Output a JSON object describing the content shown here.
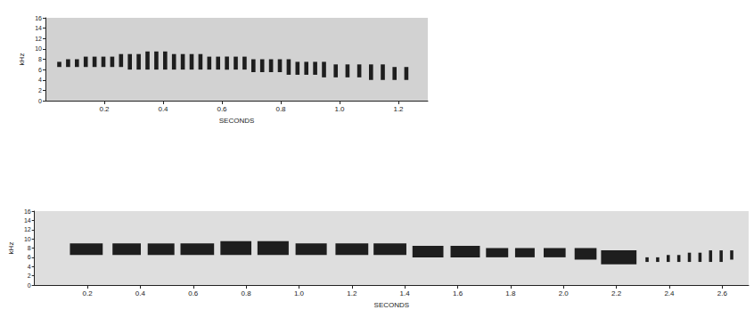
{
  "chart_data": [
    {
      "type": "spectrogram",
      "x_label": "SECONDS",
      "y_label": "kHz",
      "color": "#1e1e1e",
      "grid": false,
      "xlim": [
        0,
        1.3
      ],
      "xticks": [
        0.2,
        0.4,
        0.6,
        0.8,
        {
          "value": 1,
          "label": "1.0"
        },
        1.2
      ],
      "ylim": [
        0,
        16
      ],
      "yticks": [
        0,
        2,
        4,
        6,
        8,
        10,
        12,
        14,
        16
      ],
      "notes": {
        "start": [
          0.04,
          0.07,
          0.1,
          0.13,
          0.16,
          0.19,
          0.22,
          0.25,
          0.28,
          0.31,
          0.34,
          0.37,
          0.4,
          0.43,
          0.46,
          0.49,
          0.52,
          0.55,
          0.58,
          0.61,
          0.64,
          0.67,
          0.7,
          0.73,
          0.76,
          0.79,
          0.82,
          0.85,
          0.88,
          0.91,
          0.94,
          0.98,
          1.02,
          1.06,
          1.1,
          1.14,
          1.18,
          1.22
        ],
        "end": [
          0.054,
          0.084,
          0.114,
          0.144,
          0.174,
          0.204,
          0.234,
          0.264,
          0.294,
          0.324,
          0.354,
          0.384,
          0.414,
          0.444,
          0.474,
          0.504,
          0.534,
          0.564,
          0.594,
          0.624,
          0.654,
          0.684,
          0.714,
          0.744,
          0.774,
          0.804,
          0.834,
          0.864,
          0.894,
          0.924,
          0.954,
          0.994,
          1.034,
          1.074,
          1.114,
          1.154,
          1.194,
          1.234
        ],
        "low": [
          6.5,
          6.5,
          6.5,
          6.5,
          6.5,
          6.5,
          6.5,
          6.5,
          6,
          6,
          6,
          6,
          6,
          6,
          6,
          6,
          6,
          6,
          6,
          6,
          6,
          6,
          5.5,
          5.5,
          5.5,
          5.5,
          5,
          5,
          5,
          5,
          4.5,
          4.5,
          4.5,
          4.5,
          4,
          4,
          4,
          4
        ],
        "high": [
          7.5,
          8,
          8,
          8.5,
          8.5,
          8.5,
          8.5,
          9,
          9,
          9,
          9.5,
          9.5,
          9.5,
          9,
          9,
          9,
          9,
          8.5,
          8.5,
          8.5,
          8.5,
          8.5,
          8,
          8,
          8,
          8,
          8,
          7.5,
          7.5,
          7.5,
          7.5,
          7,
          7,
          7,
          7,
          7,
          6.5,
          6.5
        ]
      }
    },
    {
      "type": "spectrogram",
      "x_label": "SECONDS",
      "y_label": "kHz",
      "color": "#1e1e1e",
      "grid": false,
      "xlim": [
        0,
        2.7
      ],
      "xticks": [
        0.2,
        0.4,
        0.6,
        0.8,
        {
          "value": 1,
          "label": "1.0"
        },
        1.2,
        1.4,
        1.6,
        1.8,
        {
          "value": 2,
          "label": "2.0"
        },
        2.2,
        2.4,
        2.6
      ],
      "ylim": [
        0,
        16
      ],
      "yticks": [
        0,
        2,
        4,
        6,
        8,
        10,
        12,
        14,
        16
      ],
      "notes": {
        "start": [
          0.134,
          0.295,
          0.428,
          0.552,
          0.703,
          0.843,
          0.987,
          1.138,
          1.282,
          1.429,
          1.573,
          1.707,
          1.817,
          1.925,
          2.042,
          2.142,
          2.31,
          2.35,
          2.39,
          2.43,
          2.47,
          2.51,
          2.55,
          2.59,
          2.63
        ],
        "end": [
          0.258,
          0.402,
          0.529,
          0.679,
          0.82,
          0.961,
          1.105,
          1.262,
          1.406,
          1.546,
          1.684,
          1.791,
          1.891,
          2.008,
          2.125,
          2.276,
          2.322,
          2.362,
          2.402,
          2.442,
          2.482,
          2.522,
          2.562,
          2.602,
          2.642
        ],
        "low": [
          6.5,
          6.5,
          6.5,
          6.5,
          6.5,
          6.5,
          6.5,
          6.5,
          6.5,
          6,
          6,
          6,
          6,
          6,
          5.5,
          4.5,
          5,
          5,
          5,
          5,
          5,
          5,
          5,
          5,
          5.5
        ],
        "high": [
          9,
          9,
          9,
          9,
          9.5,
          9.5,
          9,
          9,
          9,
          8.5,
          8.5,
          8,
          8,
          8,
          8,
          7.5,
          6,
          6,
          6.5,
          6.5,
          7,
          7,
          7.5,
          7.5,
          7.5
        ]
      }
    }
  ]
}
